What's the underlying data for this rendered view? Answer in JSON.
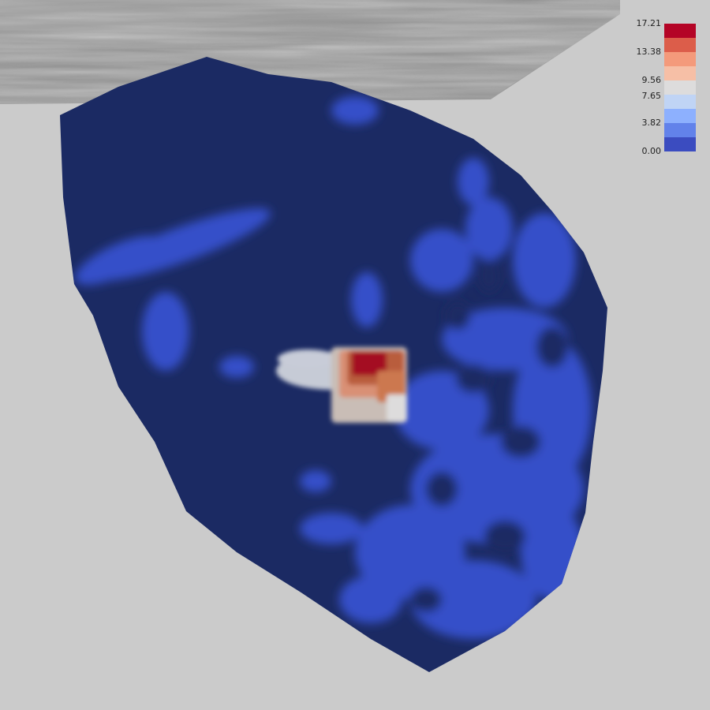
{
  "legend": {
    "labels": [
      "17.21",
      "13.38",
      "9.56",
      "7.65",
      "3.82",
      "0.00"
    ],
    "colors": [
      "#b40426",
      "#dc5d4a",
      "#f49a7b",
      "#f6bfa6",
      "#dddcdc",
      "#c0d4f5",
      "#8db0fe",
      "#6282ea",
      "#3b4cc0"
    ]
  },
  "colors": {
    "background": "#cbcbcb",
    "surface_base": "#1b2a63",
    "surface_low": "#3550c9",
    "surface_mid": "#5b77e6",
    "hot": "#a40b20"
  }
}
